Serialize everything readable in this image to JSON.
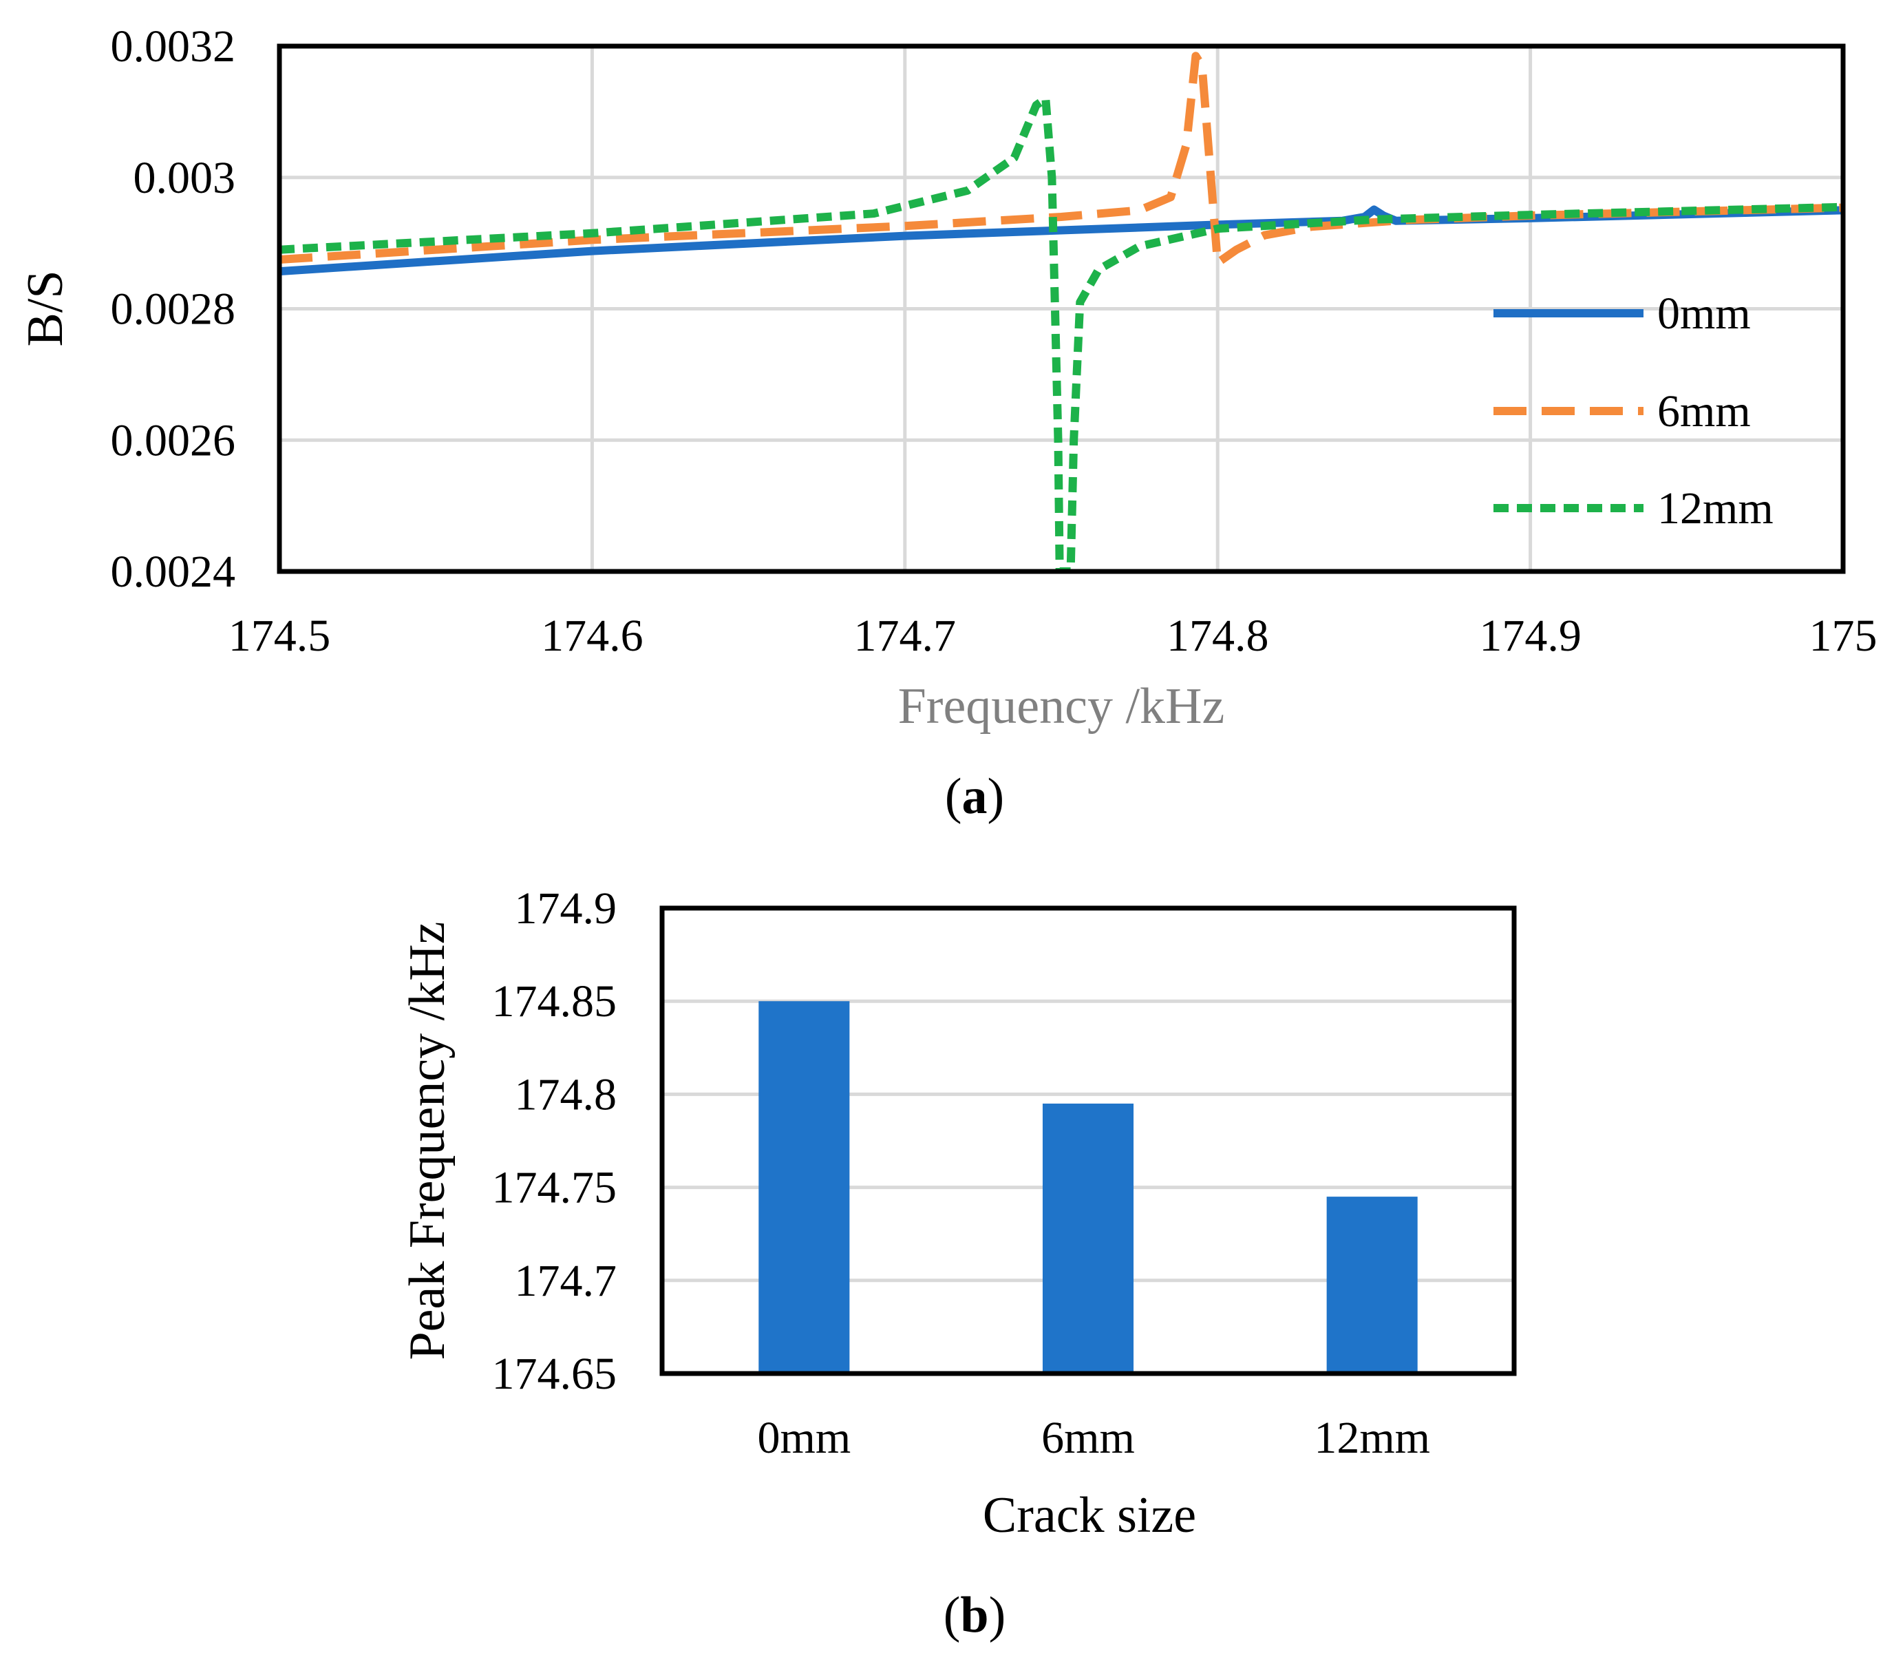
{
  "chart_data": [
    {
      "type": "line",
      "panel": "(a)",
      "panel_letter": "a",
      "title": "",
      "xlabel": "Frequency /kHz",
      "ylabel": "B/S",
      "xlim": [
        174.5,
        175
      ],
      "ylim": [
        0.0024,
        0.0032
      ],
      "x_ticks": [
        "174.5",
        "174.6",
        "174.7",
        "174.8",
        "174.9",
        "175"
      ],
      "y_ticks": [
        "0.0024",
        "0.0026",
        "0.0028",
        "0.003",
        "0.0032"
      ],
      "grid": true,
      "legend_position": "right",
      "series": [
        {
          "name": "0mm",
          "color": "#1f6fc5",
          "style": "solid",
          "x": [
            174.5,
            174.6,
            174.7,
            174.8,
            174.84,
            174.847,
            174.85,
            174.853,
            174.857,
            174.9,
            175.0
          ],
          "y": [
            0.002857,
            0.002888,
            0.002911,
            0.002928,
            0.002934,
            0.00294,
            0.002951,
            0.002942,
            0.002934,
            0.002938,
            0.00295
          ]
        },
        {
          "name": "6mm",
          "color": "#f58a3a",
          "style": "dashed",
          "x": [
            174.5,
            174.6,
            174.7,
            174.75,
            174.775,
            174.785,
            174.79,
            174.793,
            174.795,
            174.797,
            174.8,
            174.806,
            174.815,
            174.83,
            174.86,
            174.9,
            175.0
          ],
          "y": [
            0.002875,
            0.002905,
            0.002926,
            0.00294,
            0.00295,
            0.00297,
            0.00305,
            0.003185,
            0.00317,
            0.00305,
            0.00287,
            0.00289,
            0.002912,
            0.002925,
            0.002935,
            0.002942,
            0.002954
          ]
        },
        {
          "name": "12mm",
          "color": "#1db24a",
          "style": "dotted",
          "x": [
            174.5,
            174.6,
            174.69,
            174.72,
            174.735,
            174.742,
            174.745,
            174.747,
            174.749,
            174.7495,
            174.753,
            174.754,
            174.756,
            174.762,
            174.775,
            174.8,
            174.85,
            174.9,
            175.0
          ],
          "y": [
            0.00289,
            0.002915,
            0.002945,
            0.00298,
            0.00303,
            0.00311,
            0.00312,
            0.003,
            0.0026,
            0.0024,
            0.0024,
            0.0026,
            0.00281,
            0.00286,
            0.002895,
            0.002922,
            0.002936,
            0.002943,
            0.002955
          ]
        }
      ]
    },
    {
      "type": "bar",
      "panel": "(b)",
      "panel_letter": "b",
      "title": "",
      "xlabel": "Crack size",
      "ylabel": "Peak Frequency /kHz",
      "categories": [
        "0mm",
        "6mm",
        "12mm"
      ],
      "values": [
        174.85,
        174.795,
        174.745
      ],
      "ylim": [
        174.65,
        174.9
      ],
      "y_ticks": [
        "174.65",
        "174.7",
        "174.75",
        "174.8",
        "174.85",
        "174.9"
      ],
      "grid": true,
      "bar_color": "#1f74c9"
    }
  ]
}
